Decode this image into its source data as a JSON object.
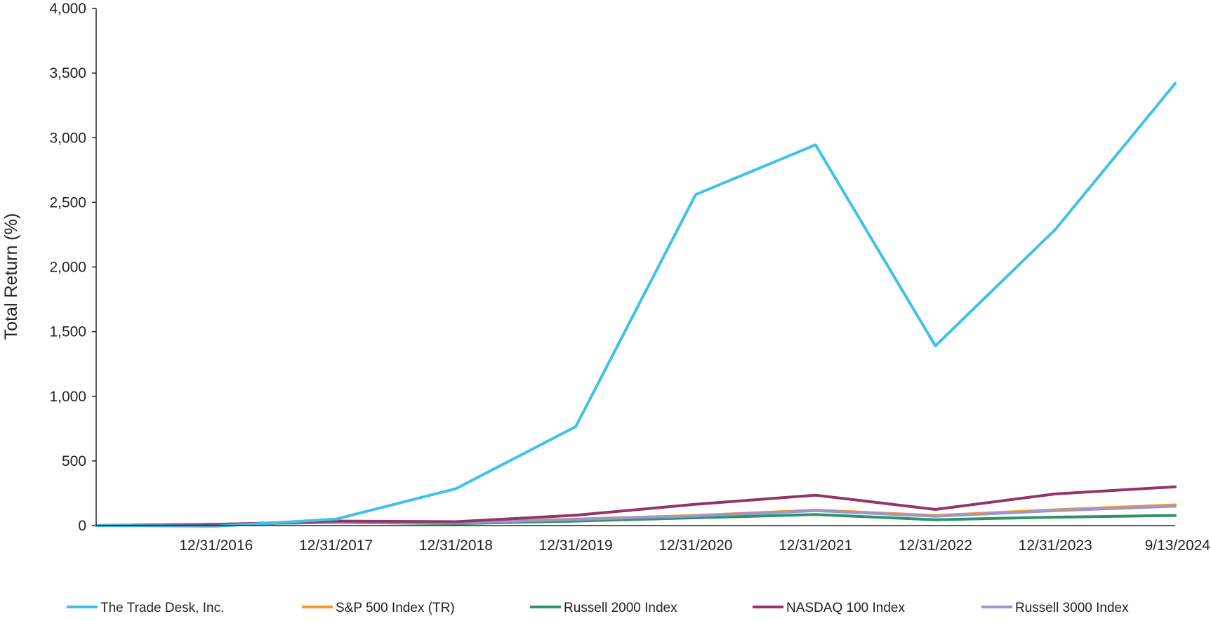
{
  "chart_data": {
    "type": "line",
    "ylabel": "Total Return (%)",
    "ylim": [
      0,
      4000
    ],
    "yticks": [
      "0",
      "500",
      "1,000",
      "1,500",
      "2,000",
      "2,500",
      "3,000",
      "3,500",
      "4,000"
    ],
    "ytick_values": [
      0,
      500,
      1000,
      1500,
      2000,
      2500,
      3000,
      3500,
      4000
    ],
    "x_tick_labels": [
      "12/31/2016",
      "12/31/2017",
      "12/31/2018",
      "12/31/2019",
      "12/31/2020",
      "12/31/2021",
      "12/31/2022",
      "12/31/2023",
      "9/13/2024"
    ],
    "x": [
      "",
      "12/31/2016",
      "12/31/2017",
      "12/31/2018",
      "12/31/2019",
      "12/31/2020",
      "12/31/2021",
      "12/31/2022",
      "12/31/2023",
      "9/13/2024"
    ],
    "grid": false,
    "legend_position": "bottom",
    "series": [
      {
        "name": "The Trade Desk, Inc.",
        "color": "#3fc1e8",
        "values": [
          0,
          -5,
          50,
          285,
          765,
          2560,
          2945,
          1390,
          2290,
          3420
        ]
      },
      {
        "name": "S&P 500 Index (TR)",
        "color": "#f5982a",
        "values": [
          0,
          10,
          30,
          22,
          50,
          78,
          120,
          78,
          122,
          160
        ]
      },
      {
        "name": "Russell 2000 Index",
        "color": "#2e9466",
        "values": [
          0,
          10,
          25,
          15,
          35,
          60,
          85,
          45,
          65,
          78
        ]
      },
      {
        "name": "NASDAQ 100 Index",
        "color": "#943566",
        "values": [
          0,
          8,
          35,
          30,
          80,
          165,
          235,
          125,
          245,
          300
        ]
      },
      {
        "name": "Russell 3000 Index",
        "color": "#9b96cd",
        "values": [
          0,
          10,
          28,
          20,
          48,
          75,
          115,
          72,
          115,
          150
        ]
      }
    ]
  }
}
